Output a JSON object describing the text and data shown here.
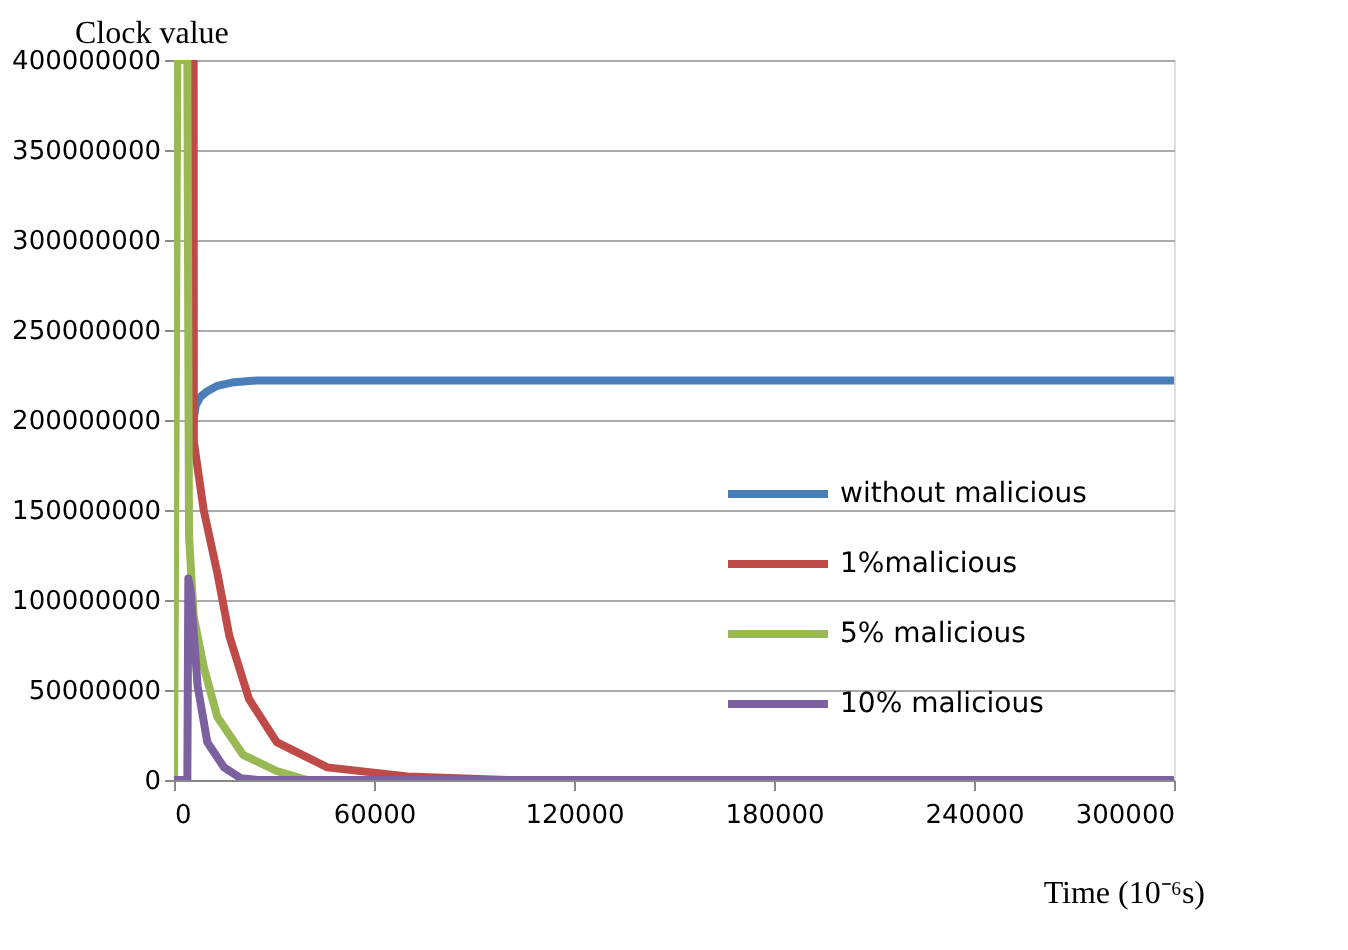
{
  "chart_data": {
    "type": "line",
    "xlabel": "Time (10⁻⁶s)",
    "ylabel": "Clock value",
    "xlim": [
      0,
      300000
    ],
    "xticks": [
      0,
      60000,
      120000,
      180000,
      240000,
      300000
    ],
    "ylim": [
      0,
      400000000
    ],
    "yticks": [
      0,
      50000000,
      100000000,
      150000000,
      200000000,
      250000000,
      300000000,
      350000000,
      400000000
    ],
    "grid": "y",
    "legend": "right",
    "marker": "none",
    "line_style": "solid",
    "series": [
      {
        "name": "without malicious",
        "color": "#4a7ebb",
        "x": [
          5900,
          6500,
          8000,
          10000,
          13000,
          18000,
          25000,
          35000,
          300000
        ],
        "values": [
          200000000,
          208000000,
          213000000,
          216000000,
          219000000,
          221000000,
          222000000,
          222000000,
          222000000
        ]
      },
      {
        "name": "1%malicious",
        "color": "#be4b48",
        "x": [
          5900,
          5950,
          8900,
          13000,
          16600,
          22500,
          30800,
          46000,
          70000,
          100000,
          300000
        ],
        "values": [
          400000000,
          188000000,
          150000000,
          115000000,
          80000000,
          45000000,
          21000000,
          7000000,
          2000000,
          0,
          0
        ]
      },
      {
        "name": "5% malicious",
        "color": "#98b954",
        "x": [
          0,
          1000,
          4000,
          4500,
          5900,
          8900,
          13000,
          20700,
          30800,
          40000,
          300000
        ],
        "values": [
          0,
          400000000,
          400000000,
          136000000,
          91000000,
          63000000,
          35000000,
          14000000,
          5000000,
          0,
          0
        ]
      },
      {
        "name": "10% malicious",
        "color": "#7d60a0",
        "x": [
          0,
          4000,
          4300,
          5000,
          7100,
          10000,
          15000,
          20000,
          25000,
          300000
        ],
        "values": [
          0,
          0,
          112000000,
          105000000,
          52000000,
          21000000,
          7000000,
          1000000,
          0,
          0
        ]
      }
    ]
  }
}
